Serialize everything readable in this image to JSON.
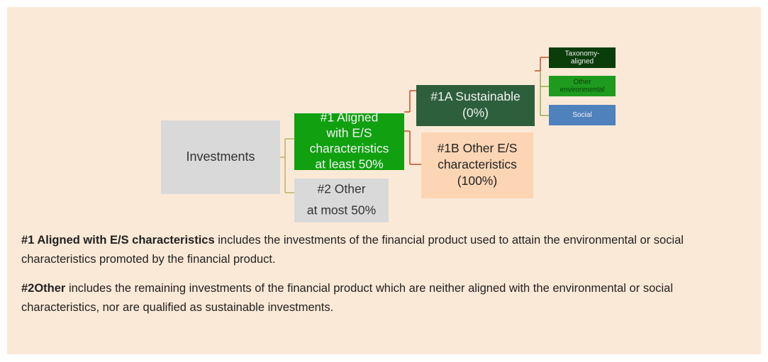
{
  "nodes": [
    {
      "label": [
        "Investments"
      ]
    },
    {
      "label": [
        "#1 Aligned",
        "with E/S",
        "characteristics",
        "at least 50%"
      ]
    },
    {
      "label": [
        "#2 Other",
        "at most 50%"
      ]
    },
    {
      "label": [
        "#1A Sustainable",
        "(0%)"
      ]
    },
    {
      "label": [
        "#1B Other E/S",
        "characteristics",
        "(100%)"
      ]
    },
    {
      "label": [
        "Taxonomy-",
        "aligned"
      ]
    },
    {
      "label": [
        "Other",
        "environmental"
      ]
    },
    {
      "label": [
        "Social"
      ]
    }
  ],
  "notes": [
    {
      "bold": "#1 Aligned with E/S characteristics",
      "text": " includes the investments of the financial product used to attain the environmental or social characteristics promoted by the financial product."
    },
    {
      "bold": "#2Other",
      "text": " includes the remaining investments of the financial product which are neither aligned with the environmental or social characteristics, nor are qualified as sustainable investments."
    }
  ]
}
